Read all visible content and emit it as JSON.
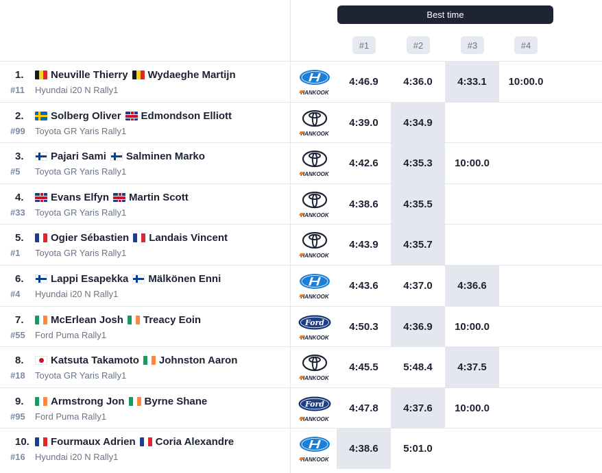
{
  "header": {
    "best_time_label": "Best time",
    "runs": [
      "#1",
      "#2",
      "#3",
      "#4"
    ]
  },
  "colors": {
    "best_highlight": "#e4e7ee",
    "banner": "#1f2433",
    "car_number": "#7c8aa5"
  },
  "rows": [
    {
      "pos": "1.",
      "num": "#11",
      "car": "Hyundai i20 N Rally1",
      "brand": "hyundai",
      "driver": {
        "flag": "be",
        "name": "Neuville Thierry"
      },
      "codriver": {
        "flag": "be",
        "name": "Wydaeghe Martijn"
      },
      "times": [
        "4:46.9",
        "4:36.0",
        "4:33.1",
        "10:00.0"
      ],
      "best": 2
    },
    {
      "pos": "2.",
      "num": "#99",
      "car": "Toyota GR Yaris Rally1",
      "brand": "toyota",
      "driver": {
        "flag": "se",
        "name": "Solberg Oliver"
      },
      "codriver": {
        "flag": "gb",
        "name": "Edmondson Elliott"
      },
      "times": [
        "4:39.0",
        "4:34.9",
        "",
        ""
      ],
      "best": 1
    },
    {
      "pos": "3.",
      "num": "#5",
      "car": "Toyota GR Yaris Rally1",
      "brand": "toyota",
      "driver": {
        "flag": "fi",
        "name": "Pajari Sami"
      },
      "codriver": {
        "flag": "fi",
        "name": "Salminen Marko"
      },
      "times": [
        "4:42.6",
        "4:35.3",
        "10:00.0",
        ""
      ],
      "best": 1
    },
    {
      "pos": "4.",
      "num": "#33",
      "car": "Toyota GR Yaris Rally1",
      "brand": "toyota",
      "driver": {
        "flag": "gb",
        "name": "Evans Elfyn"
      },
      "codriver": {
        "flag": "gb",
        "name": "Martin Scott"
      },
      "times": [
        "4:38.6",
        "4:35.5",
        "",
        ""
      ],
      "best": 1
    },
    {
      "pos": "5.",
      "num": "#1",
      "car": "Toyota GR Yaris Rally1",
      "brand": "toyota",
      "driver": {
        "flag": "fr",
        "name": "Ogier Sébastien"
      },
      "codriver": {
        "flag": "fr",
        "name": "Landais Vincent"
      },
      "times": [
        "4:43.9",
        "4:35.7",
        "",
        ""
      ],
      "best": 1
    },
    {
      "pos": "6.",
      "num": "#4",
      "car": "Hyundai i20 N Rally1",
      "brand": "hyundai",
      "driver": {
        "flag": "fi",
        "name": "Lappi Esapekka"
      },
      "codriver": {
        "flag": "fi",
        "name": "Mälkönen Enni"
      },
      "times": [
        "4:43.6",
        "4:37.0",
        "4:36.6",
        ""
      ],
      "best": 2
    },
    {
      "pos": "7.",
      "num": "#55",
      "car": "Ford Puma Rally1",
      "brand": "ford",
      "driver": {
        "flag": "ie",
        "name": "McErlean Josh"
      },
      "codriver": {
        "flag": "ie",
        "name": "Treacy Eoin"
      },
      "times": [
        "4:50.3",
        "4:36.9",
        "10:00.0",
        ""
      ],
      "best": 1
    },
    {
      "pos": "8.",
      "num": "#18",
      "car": "Toyota GR Yaris Rally1",
      "brand": "toyota",
      "driver": {
        "flag": "jp",
        "name": "Katsuta Takamoto"
      },
      "codriver": {
        "flag": "ie",
        "name": "Johnston Aaron"
      },
      "times": [
        "4:45.5",
        "5:48.4",
        "4:37.5",
        ""
      ],
      "best": 2
    },
    {
      "pos": "9.",
      "num": "#95",
      "car": "Ford Puma Rally1",
      "brand": "ford",
      "driver": {
        "flag": "ie",
        "name": "Armstrong Jon"
      },
      "codriver": {
        "flag": "ie",
        "name": "Byrne Shane"
      },
      "times": [
        "4:47.8",
        "4:37.6",
        "10:00.0",
        ""
      ],
      "best": 1
    },
    {
      "pos": "10.",
      "num": "#16",
      "car": "Hyundai i20 N Rally1",
      "brand": "hyundai",
      "driver": {
        "flag": "fr",
        "name": "Fourmaux Adrien"
      },
      "codriver": {
        "flag": "fr",
        "name": "Coria Alexandre"
      },
      "times": [
        "4:38.6",
        "5:01.0",
        "",
        ""
      ],
      "best": 0
    }
  ],
  "tire_brand_label": "HANKOOK"
}
